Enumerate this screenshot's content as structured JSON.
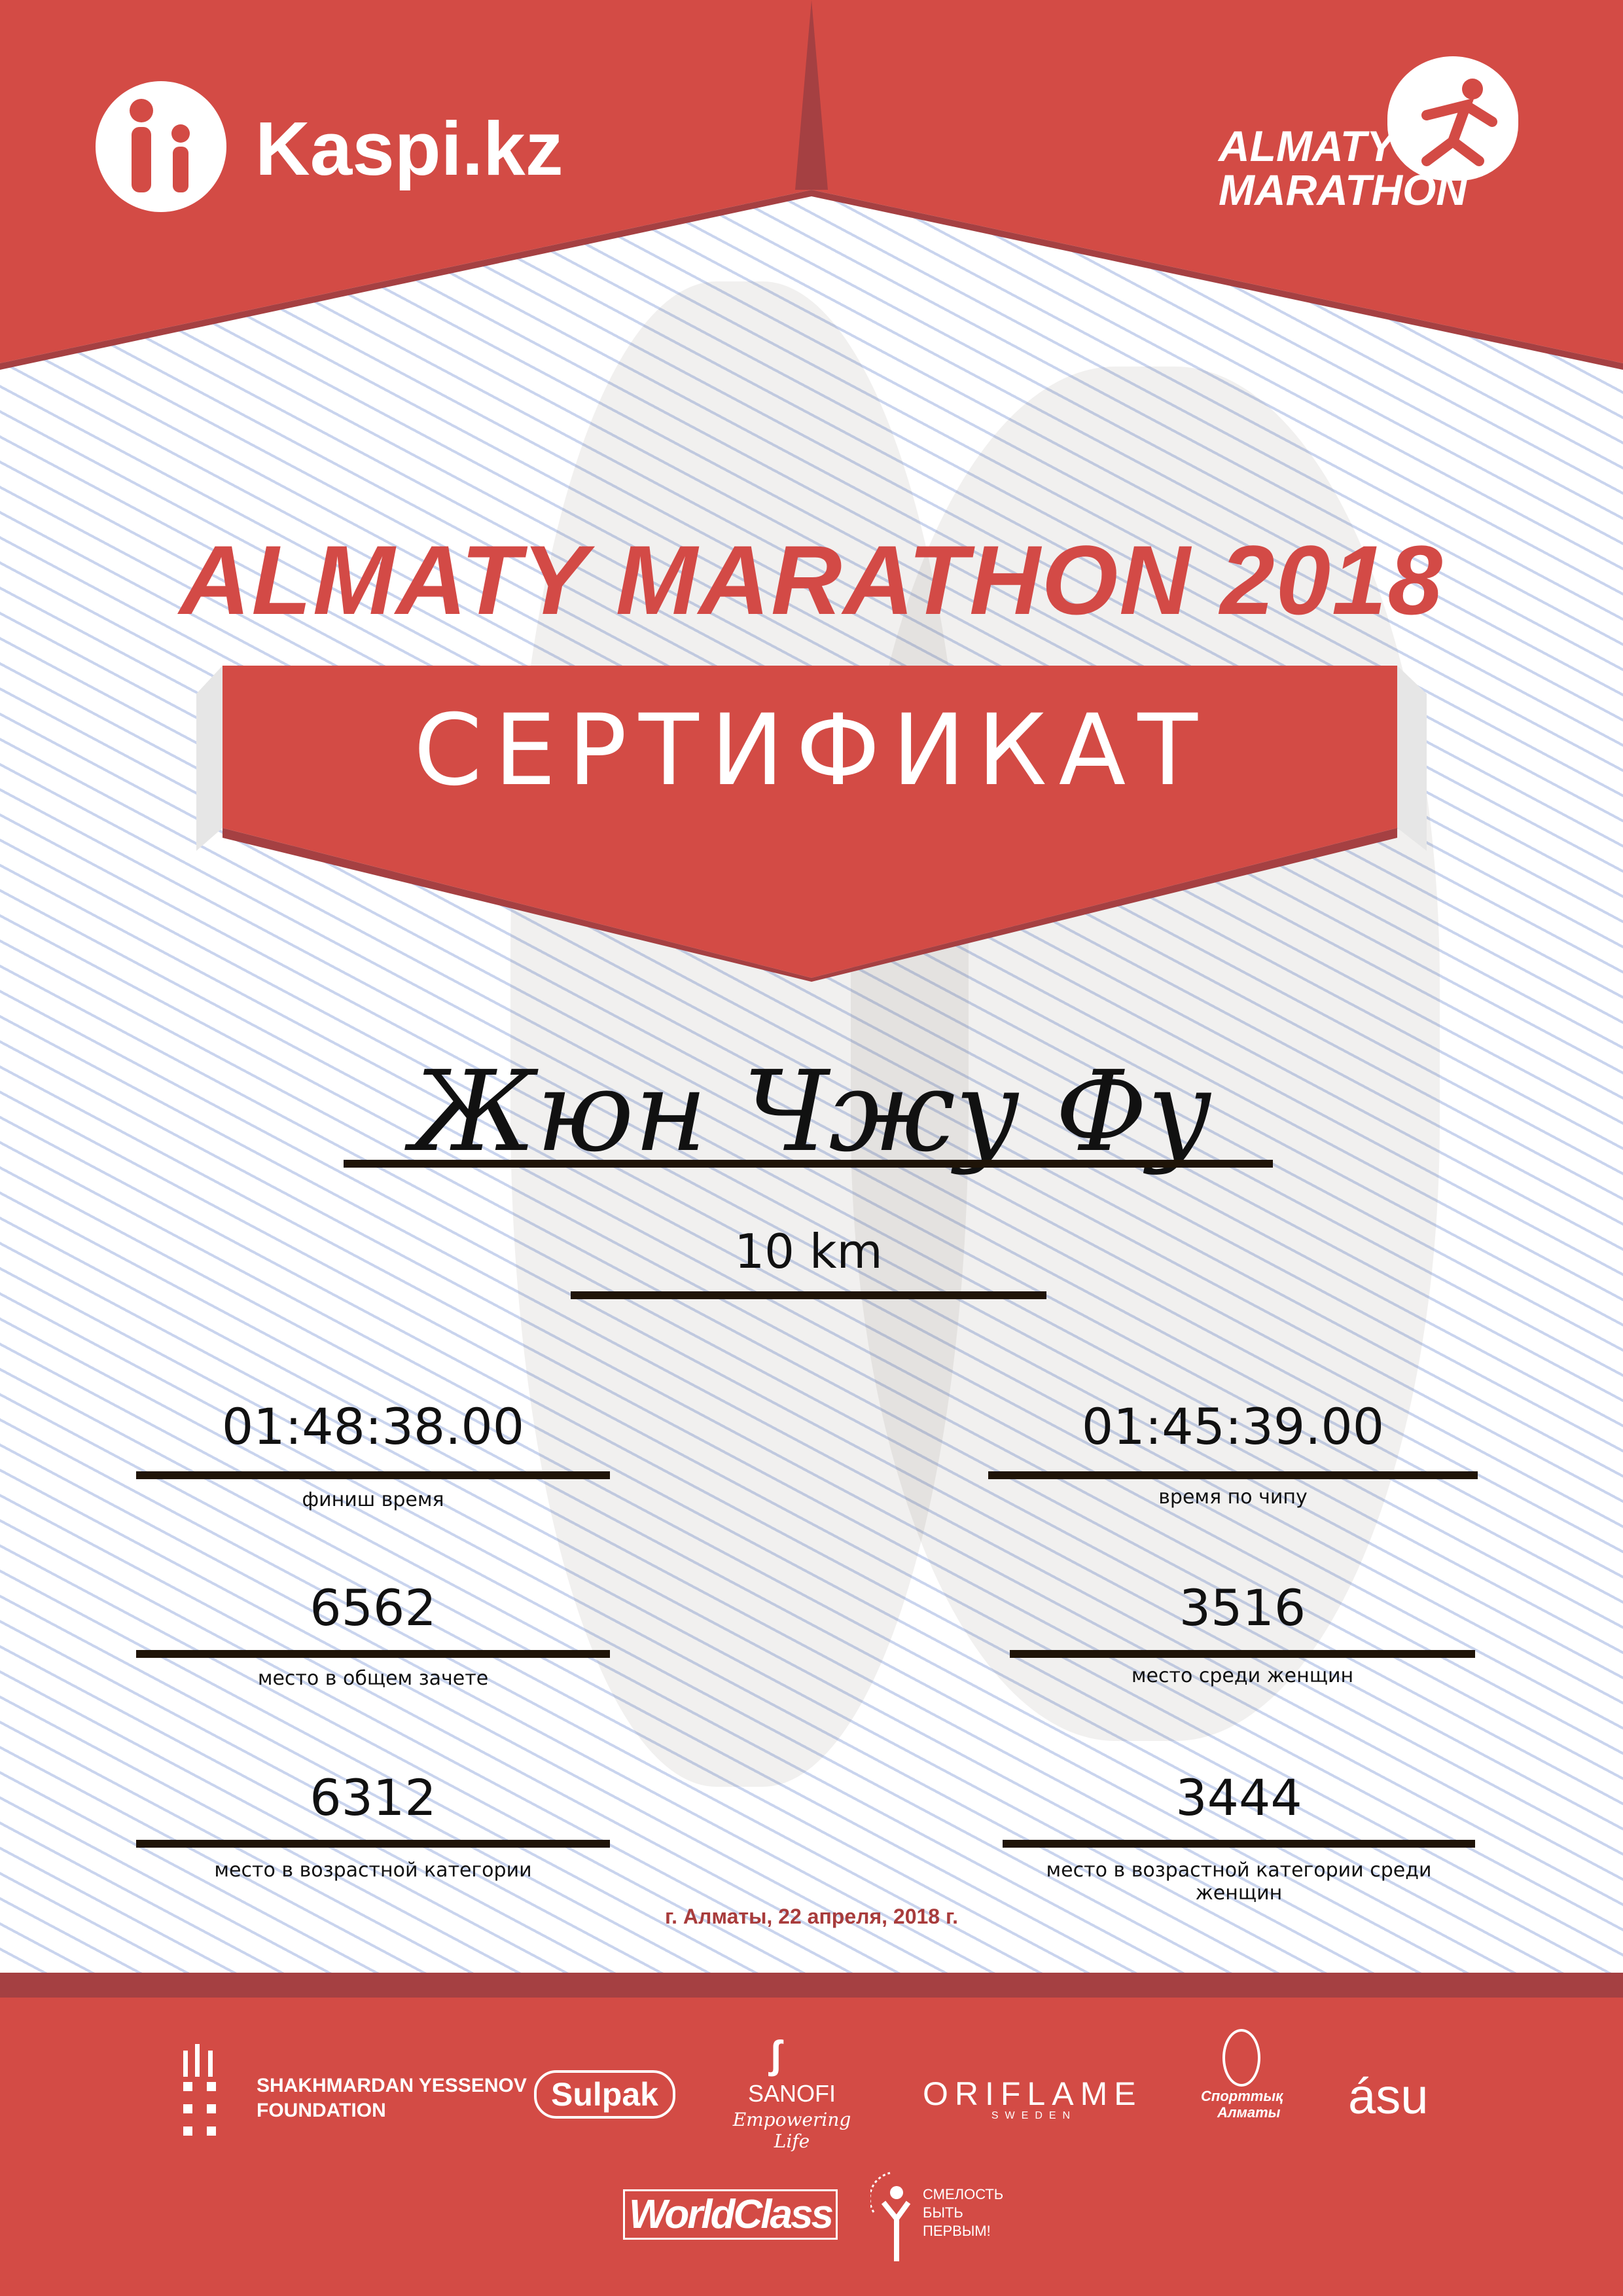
{
  "header": {
    "left_logo": "Kaspi.kz",
    "right_logo_line1": "ALMATY",
    "right_logo_line2": "MARATHON"
  },
  "title": "ALMATY MARATHON 2018",
  "banner": "СЕРТИФИКАТ",
  "participant_name": "Жюн Чжу Фу",
  "distance": "10 km",
  "stats": [
    {
      "value": "01:48:38.00",
      "label": "финиш время"
    },
    {
      "value": "01:45:39.00",
      "label": "время по чипу"
    },
    {
      "value": "6562",
      "label": "место в общем зачете"
    },
    {
      "value": "3516",
      "label": "место среди женщин"
    },
    {
      "value": "6312",
      "label": "место в возрастной категории"
    },
    {
      "value": "3444",
      "label": "место в возрастной категории среди женщин"
    }
  ],
  "date": "г. Алматы, 22 апреля, 2018 г.",
  "sponsors": {
    "yessenov_line1": "SHAKHMARDAN YESSENOV",
    "yessenov_line2": "FOUNDATION",
    "sulpak": "Sulpak",
    "sanofi": "SANOFI",
    "sanofi_tagline": "Empowering Life",
    "oriflame": "ORIFLAME",
    "oriflame_sub": "SWEDEN",
    "sport_almaty_line1": "Спорттық",
    "sport_almaty_line2": "Алматы",
    "asu": "ásu",
    "worldclass": "WorldClass",
    "fund_line1": "СМЕЛОСТЬ",
    "fund_line2": "БЫТЬ",
    "fund_line3": "ПЕРВЫМ!"
  },
  "colors": {
    "brand_red": "#d34b45",
    "dark_red": "#a54042",
    "text": "#111111",
    "date": "#a83c3c"
  }
}
